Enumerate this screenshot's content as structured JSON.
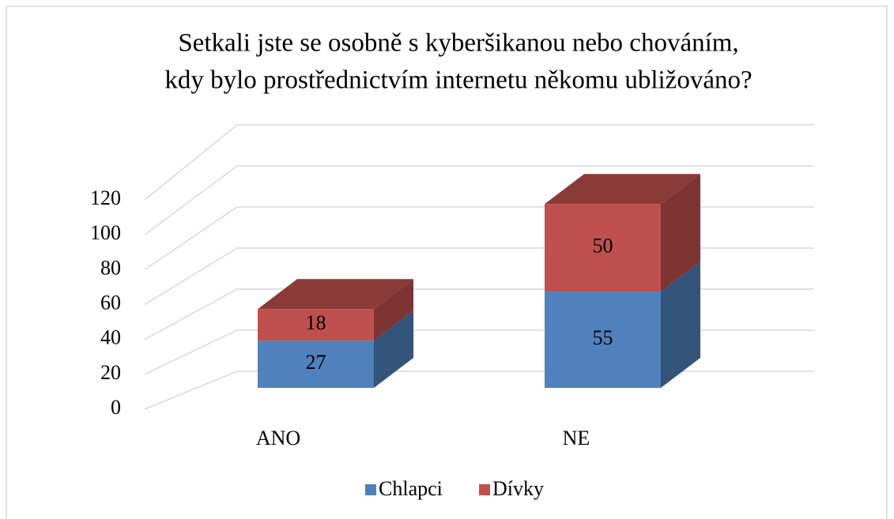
{
  "chart_data": {
    "type": "bar3d_stacked",
    "title": [
      "Setkali jste se osobně s kyberšikanou nebo chováním,",
      "kdy bylo prostřednictvím internetu někomu ubližováno?"
    ],
    "categories": [
      "ANO",
      "NE"
    ],
    "series": [
      {
        "name": "Chlapci",
        "color": "#4f81bd",
        "values": [
          27,
          55
        ]
      },
      {
        "name": "Dívky",
        "color": "#c0504d",
        "values": [
          18,
          50
        ]
      }
    ],
    "ylim": [
      0,
      120
    ],
    "yticks": [
      0,
      20,
      40,
      60,
      80,
      100,
      120
    ],
    "grid": true,
    "legend": "bottom"
  }
}
